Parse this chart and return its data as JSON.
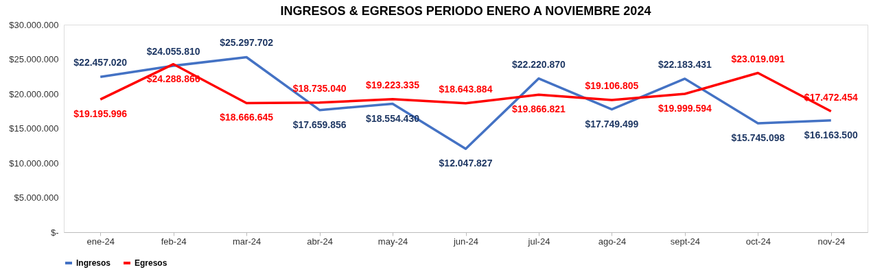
{
  "chart_data": {
    "type": "line",
    "title": "INGRESOS & EGRESOS PERIODO ENERO A NOVIEMBRE 2024",
    "categories": [
      "ene-24",
      "feb-24",
      "mar-24",
      "abr-24",
      "may-24",
      "jun-24",
      "jul-24",
      "ago-24",
      "sept-24",
      "oct-24",
      "nov-24"
    ],
    "series": [
      {
        "name": "Ingresos",
        "color": "#4472c4",
        "values": [
          22457020,
          24055810,
          25297702,
          17659856,
          18554430,
          12047827,
          22220870,
          17749499,
          22183431,
          15745098,
          16163500
        ],
        "value_labels": [
          "$22.457.020",
          "$24.055.810",
          "$25.297.702",
          "$17.659.856",
          "$18.554.430",
          "$12.047.827",
          "$22.220.870",
          "$17.749.499",
          "$22.183.431",
          "$15.745.098",
          "$16.163.500"
        ]
      },
      {
        "name": "Egresos",
        "color": "#ff0000",
        "values": [
          19195996,
          24288866,
          18666645,
          18735040,
          19223335,
          18643884,
          19866821,
          19106805,
          19999594,
          23019091,
          17472454
        ],
        "value_labels": [
          "$19.195.996",
          "$24.288.866",
          "$18.666.645",
          "$18.735.040",
          "$19.223.335",
          "$18.643.884",
          "$19.866.821",
          "$19.106.805",
          "$19.999.594",
          "$23.019.091",
          "$17.472.454"
        ]
      }
    ],
    "ylim": [
      0,
      30000000
    ],
    "yticks": [
      {
        "value": 0,
        "label": "$-"
      },
      {
        "value": 5000000,
        "label": "$5.000.000"
      },
      {
        "value": 10000000,
        "label": "$10.000.000"
      },
      {
        "value": 15000000,
        "label": "$15.000.000"
      },
      {
        "value": 20000000,
        "label": "$20.000.000"
      },
      {
        "value": 25000000,
        "label": "$25.000.000"
      },
      {
        "value": 30000000,
        "label": "$30.000.000"
      }
    ],
    "grid": false,
    "legend": "bottom",
    "marker": "none",
    "line_style": "solid"
  }
}
